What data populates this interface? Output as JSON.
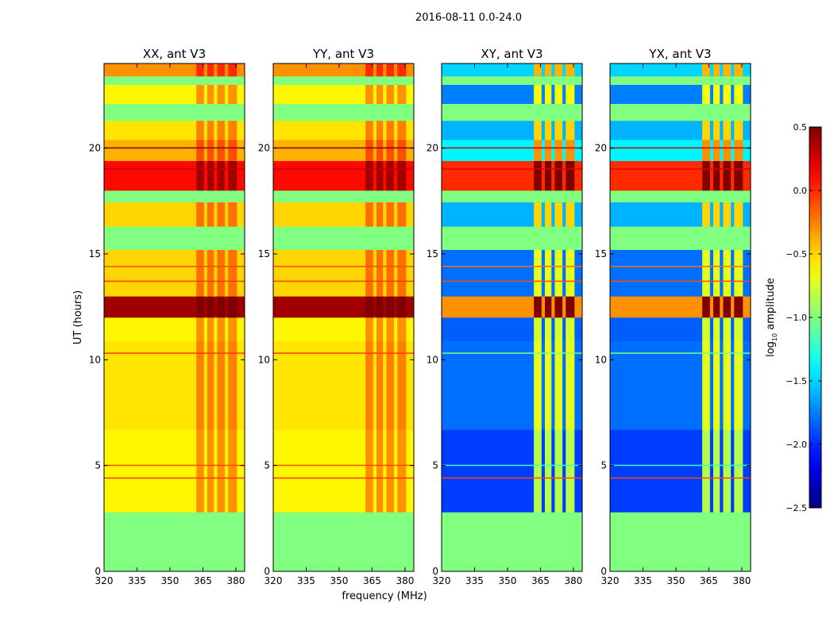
{
  "chart_data": {
    "type": "heatmap",
    "title": "2016-08-11 0.0-24.0",
    "xlabel": "frequency (MHz)",
    "ylabel": "UT (hours)",
    "xlim": [
      320,
      384
    ],
    "ylim": [
      0,
      24
    ],
    "xticks": [
      "320",
      "335",
      "350",
      "365",
      "380"
    ],
    "xtick_values": [
      320,
      335,
      350,
      365,
      380
    ],
    "yticks": [
      "0",
      "5",
      "10",
      "15",
      "20"
    ],
    "ytick_values": [
      0,
      5,
      10,
      15,
      20
    ],
    "panels": [
      {
        "title": "XX, ant V3",
        "kind": "auto"
      },
      {
        "title": "YY, ant V3",
        "kind": "auto"
      },
      {
        "title": "XY, ant V3",
        "kind": "cross"
      },
      {
        "title": "YX, ant V3",
        "kind": "cross"
      }
    ],
    "flagged_value": -1.0,
    "time_bands": [
      {
        "start": 0.0,
        "end": 2.8,
        "auto": null,
        "cross": null
      },
      {
        "start": 2.8,
        "end": 6.7,
        "auto": -0.6,
        "cross": -1.95
      },
      {
        "start": 6.7,
        "end": 10.9,
        "auto": -0.55,
        "cross": -1.8
      },
      {
        "start": 10.9,
        "end": 12.0,
        "auto": -0.6,
        "cross": -1.85
      },
      {
        "start": 12.0,
        "end": 13.0,
        "auto": 0.4,
        "cross": -0.3
      },
      {
        "start": 13.0,
        "end": 15.2,
        "auto": -0.5,
        "cross": -1.8
      },
      {
        "start": 15.2,
        "end": 16.3,
        "auto": null,
        "cross": null
      },
      {
        "start": 16.3,
        "end": 17.45,
        "auto": -0.5,
        "cross": -1.6
      },
      {
        "start": 17.45,
        "end": 18.0,
        "auto": null,
        "cross": null
      },
      {
        "start": 18.0,
        "end": 19.4,
        "auto": 0.1,
        "cross": 0.0
      },
      {
        "start": 19.4,
        "end": 20.4,
        "auto": -0.4,
        "cross": -1.4
      },
      {
        "start": 20.4,
        "end": 21.3,
        "auto": -0.55,
        "cross": -1.6
      },
      {
        "start": 21.3,
        "end": 22.1,
        "auto": null,
        "cross": null
      },
      {
        "start": 22.1,
        "end": 23.0,
        "auto": -0.6,
        "cross": -1.75
      },
      {
        "start": 23.0,
        "end": 23.4,
        "auto": null,
        "cross": null
      },
      {
        "start": 23.4,
        "end": 24.0,
        "auto": -0.3,
        "cross": -1.5
      }
    ],
    "rfi_channels": [
      [
        362,
        365.5
      ],
      [
        367,
        370
      ],
      [
        371.5,
        375
      ],
      [
        376.5,
        380.5
      ]
    ],
    "rfi_boost": {
      "auto": 0.3,
      "cross": 1.1
    },
    "lines": [
      {
        "t": 4.4,
        "auto": -0.05,
        "cross": -0.1
      },
      {
        "t": 5.0,
        "auto": -0.1,
        "cross": -1.2
      },
      {
        "t": 13.7,
        "auto": -0.05,
        "cross": -0.1
      },
      {
        "t": 14.4,
        "auto": -0.1,
        "cross": -0.2
      },
      {
        "t": 20.0,
        "auto": 0.5,
        "cross": 0.3
      },
      {
        "t": 19.0,
        "auto": 0.3,
        "cross": 0.2
      },
      {
        "t": 10.3,
        "auto": -0.05,
        "cross": -1.0
      }
    ],
    "colorbar": {
      "label_main": "log",
      "label_sub": "10",
      "label_rest": " amplitude",
      "range": [
        -2.5,
        0.5
      ],
      "ticks": [
        "0.5",
        "0.0",
        "−0.5",
        "−1.0",
        "−1.5",
        "−2.0",
        "−2.5"
      ],
      "tick_values": [
        0.5,
        0.0,
        -0.5,
        -1.0,
        -1.5,
        -2.0,
        -2.5
      ],
      "colormap": "jet"
    }
  }
}
